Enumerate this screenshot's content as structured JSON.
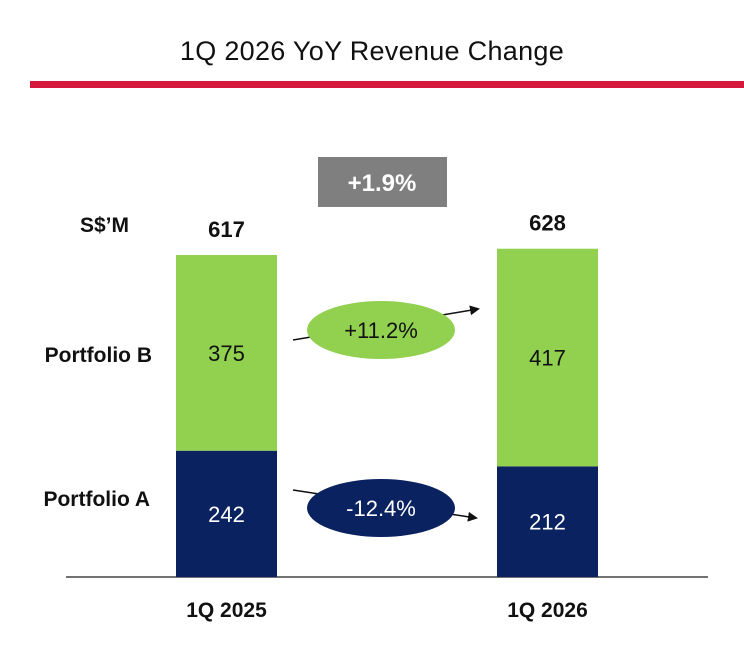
{
  "title": "1Q 2026 YoY Revenue Change",
  "unit_label": "S$’M",
  "total_change": "+1.9%",
  "segment_labels": {
    "top": "Portfolio B",
    "bottom": "Portfolio A"
  },
  "changes": {
    "portfolio_b": "+11.2%",
    "portfolio_a": "-12.4%"
  },
  "colors": {
    "portfolio_b": "#92d050",
    "portfolio_a": "#0b2260",
    "rule": "#d4173a",
    "total_box": "#7f7f7f",
    "text_dark": "#111111",
    "text_light": "#ffffff"
  },
  "chart_data": {
    "type": "bar",
    "stacked": true,
    "categories": [
      "1Q 2025",
      "1Q 2026"
    ],
    "series": [
      {
        "name": "Portfolio A",
        "values": [
          242,
          212
        ]
      },
      {
        "name": "Portfolio B",
        "values": [
          375,
          417
        ]
      }
    ],
    "totals": [
      617,
      628
    ]
  }
}
